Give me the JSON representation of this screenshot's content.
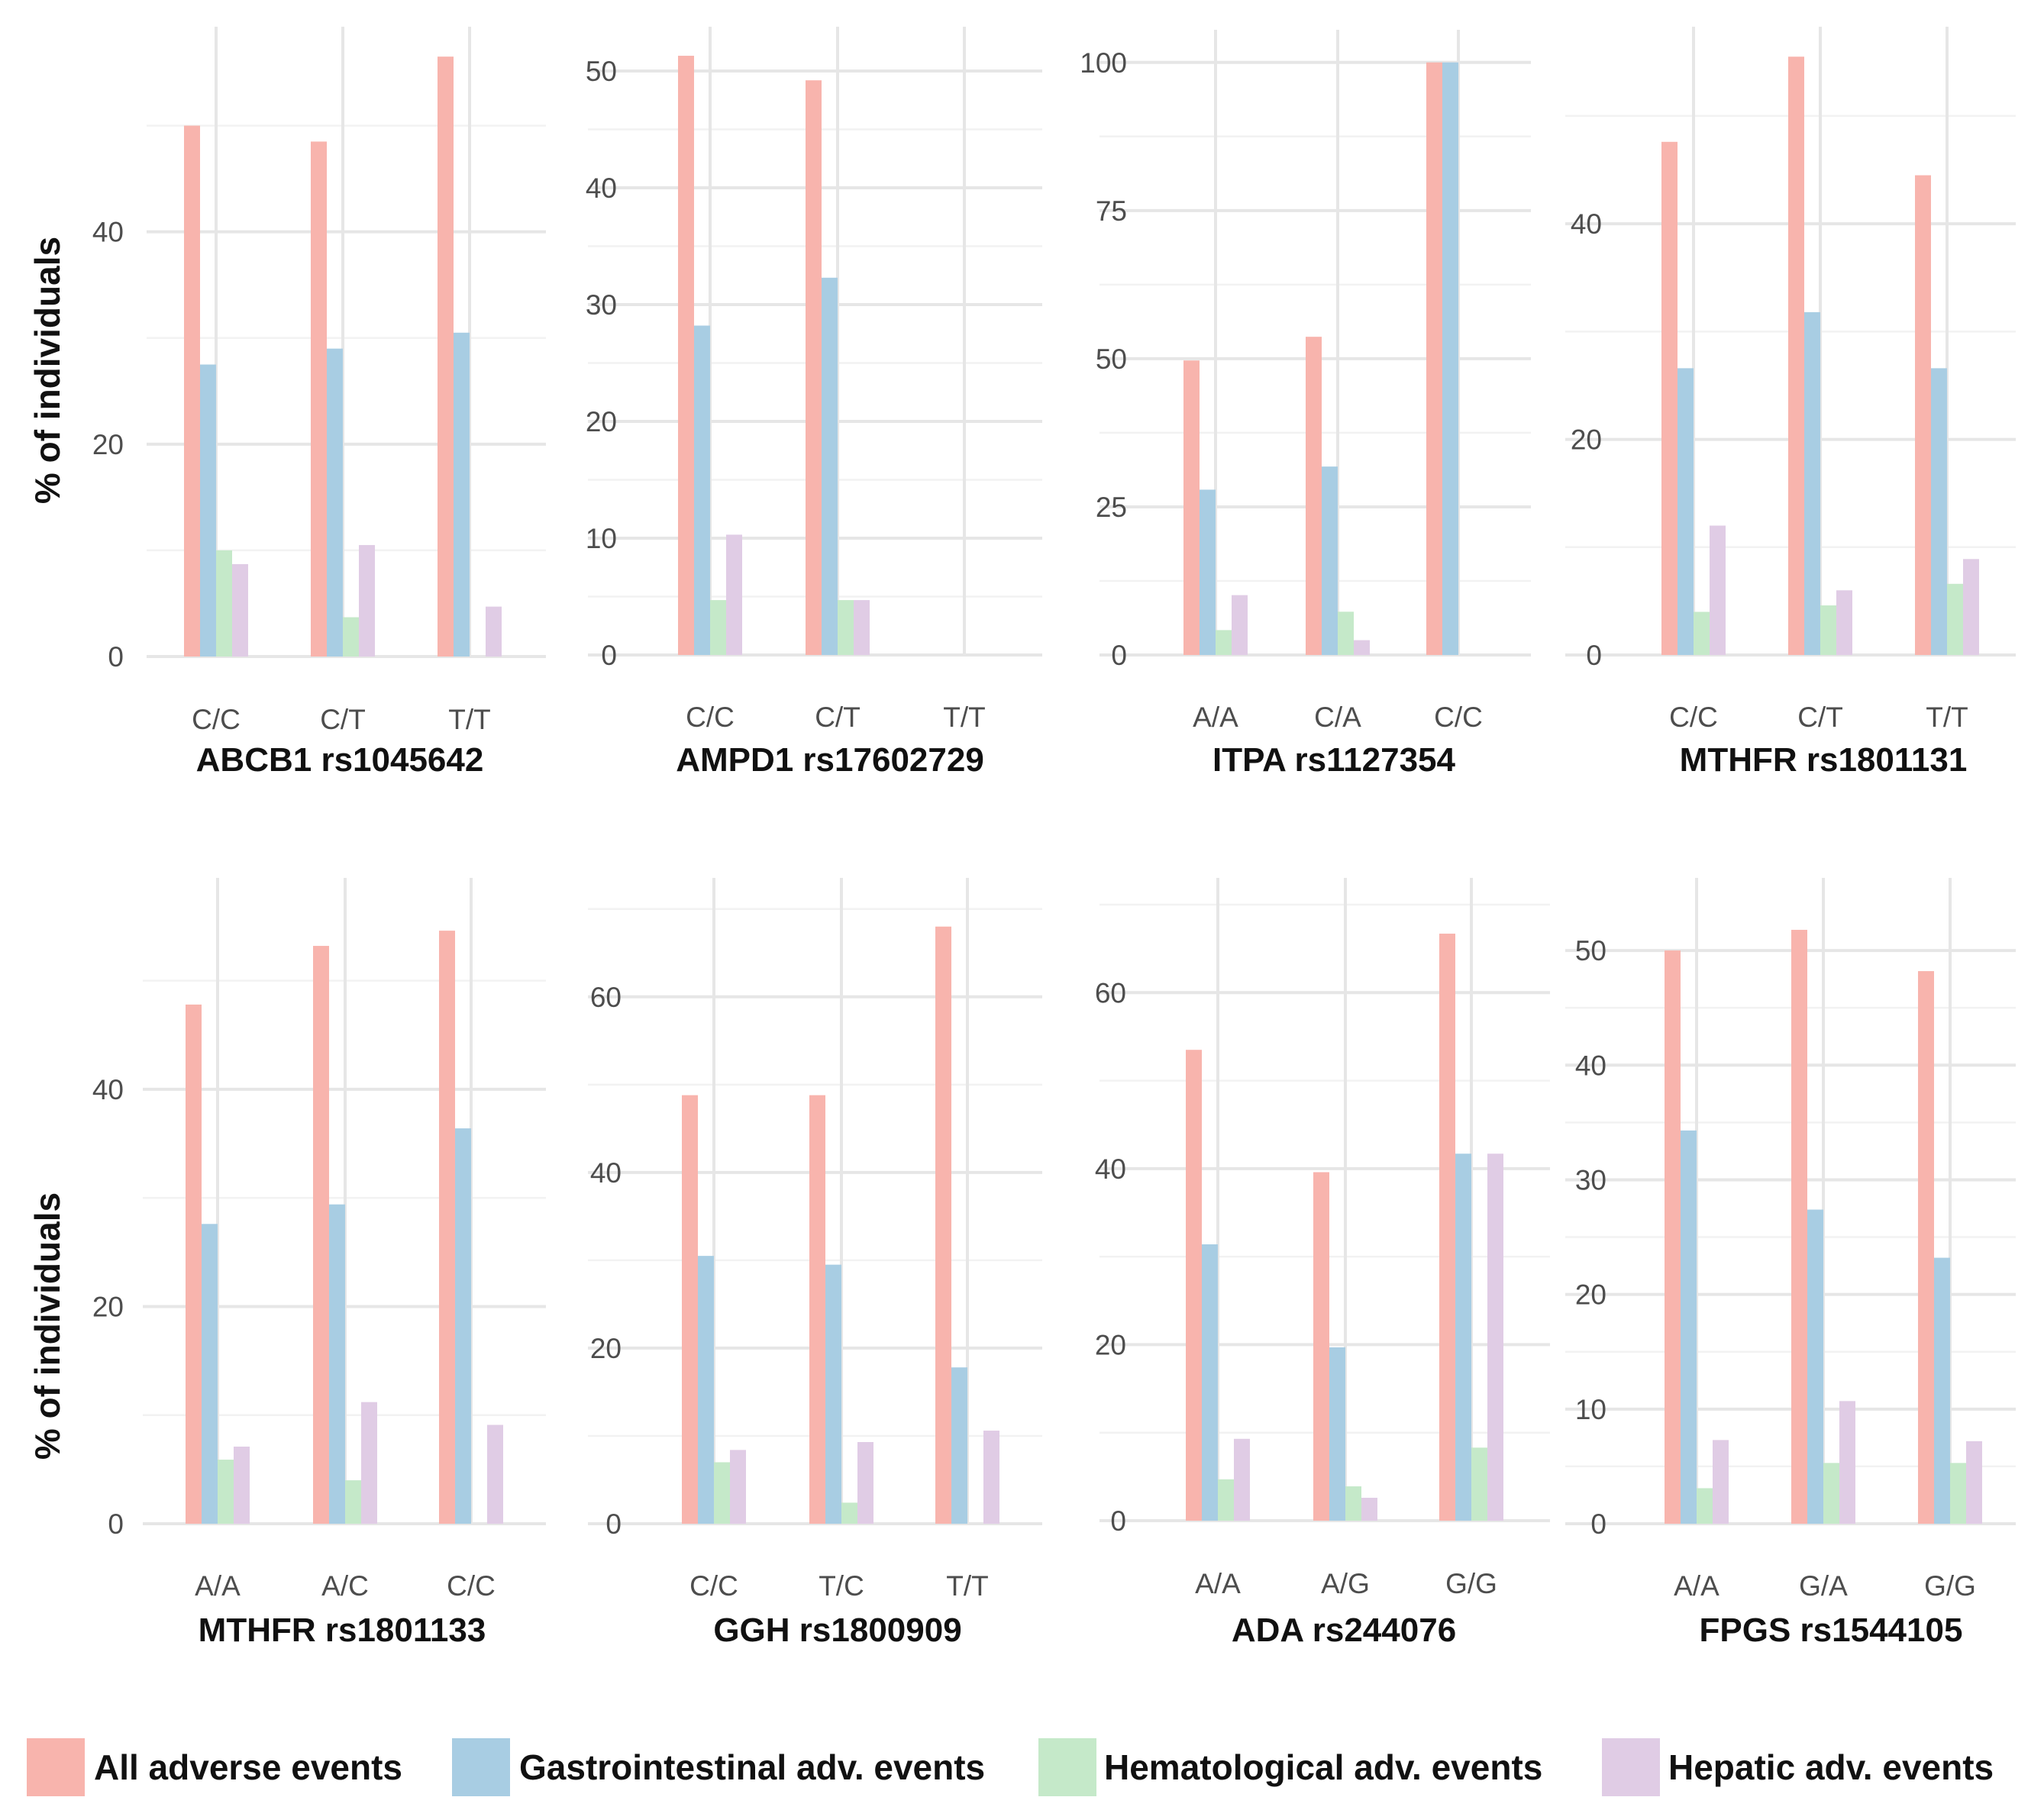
{
  "y_axis_label": "% of individuals",
  "colors": {
    "all": "#f8b4ad",
    "gastro": "#a8cde3",
    "hema": "#c5e9c9",
    "hepatic": "#e0cce5",
    "grid_major": "#e6e6e6",
    "grid_minor": "#f2f2f2"
  },
  "chart_data": [
    {
      "type": "bar",
      "title": "ABCB1 rs1045642",
      "ylabel": "% of individuals",
      "categories": [
        "C/C",
        "C/T",
        "T/T"
      ],
      "yticks": [
        0,
        20,
        40
      ],
      "ylim": [
        0,
        56.8
      ],
      "series": [
        {
          "name": "All adverse events",
          "values": [
            50,
            48.5,
            56.5
          ]
        },
        {
          "name": "Gastrointestinal adv. events",
          "values": [
            27.5,
            29,
            30.5
          ]
        },
        {
          "name": "Hematological adv. events",
          "values": [
            10,
            3.7,
            0
          ]
        },
        {
          "name": "Hepatic adv. events",
          "values": [
            8.7,
            10.5,
            4.7
          ]
        }
      ]
    },
    {
      "type": "bar",
      "title": "AMPD1 rs17602729",
      "ylabel": "",
      "categories": [
        "C/C",
        "C/T",
        "T/T"
      ],
      "yticks": [
        0,
        10,
        20,
        30,
        40,
        50
      ],
      "ylim": [
        0,
        51.5
      ],
      "series": [
        {
          "name": "All adverse events",
          "values": [
            51.3,
            49.2,
            0
          ]
        },
        {
          "name": "Gastrointestinal adv. events",
          "values": [
            28.2,
            32.3,
            0
          ]
        },
        {
          "name": "Hematological adv. events",
          "values": [
            4.7,
            4.7,
            0
          ]
        },
        {
          "name": "Hepatic adv. events",
          "values": [
            10.3,
            4.7,
            0
          ]
        }
      ]
    },
    {
      "type": "bar",
      "title": "ITPA rs1127354",
      "ylabel": "",
      "categories": [
        "A/A",
        "C/A",
        "C/C"
      ],
      "yticks": [
        0,
        25,
        50,
        75,
        100
      ],
      "ylim": [
        0,
        101
      ],
      "series": [
        {
          "name": "All adverse events",
          "values": [
            49.7,
            53.7,
            100
          ]
        },
        {
          "name": "Gastrointestinal adv. events",
          "values": [
            27.9,
            31.8,
            100
          ]
        },
        {
          "name": "Hematological adv. events",
          "values": [
            4.2,
            7.3,
            0
          ]
        },
        {
          "name": "Hepatic adv. events",
          "values": [
            10.1,
            2.5,
            0
          ]
        }
      ]
    },
    {
      "type": "bar",
      "title": "MTHFR rs1801131",
      "ylabel": "",
      "categories": [
        "C/C",
        "C/T",
        "T/T"
      ],
      "yticks": [
        0,
        20,
        40
      ],
      "ylim": [
        0,
        55.8
      ],
      "series": [
        {
          "name": "All adverse events",
          "values": [
            47.6,
            55.5,
            44.5
          ]
        },
        {
          "name": "Gastrointestinal adv. events",
          "values": [
            26.6,
            31.8,
            26.6
          ]
        },
        {
          "name": "Hematological adv. events",
          "values": [
            4,
            4.6,
            6.6
          ]
        },
        {
          "name": "Hepatic adv. events",
          "values": [
            12,
            6,
            8.9
          ]
        }
      ]
    },
    {
      "type": "bar",
      "title": "MTHFR rs1801133",
      "ylabel": "% of individuals",
      "categories": [
        "A/A",
        "A/C",
        "C/C"
      ],
      "yticks": [
        0,
        20,
        40
      ],
      "ylim": [
        0,
        57
      ],
      "series": [
        {
          "name": "All adverse events",
          "values": [
            47.8,
            53.2,
            54.6
          ]
        },
        {
          "name": "Gastrointestinal adv. events",
          "values": [
            27.6,
            29.4,
            36.4
          ]
        },
        {
          "name": "Hematological adv. events",
          "values": [
            5.9,
            4,
            0
          ]
        },
        {
          "name": "Hepatic adv. events",
          "values": [
            7.1,
            11.2,
            9.1
          ]
        }
      ]
    },
    {
      "type": "bar",
      "title": "GGH rs1800909",
      "ylabel": "",
      "categories": [
        "C/C",
        "T/C",
        "T/T"
      ],
      "yticks": [
        0,
        20,
        40,
        60
      ],
      "ylim": [
        0,
        70.5
      ],
      "series": [
        {
          "name": "All adverse events",
          "values": [
            48.8,
            48.8,
            68
          ]
        },
        {
          "name": "Gastrointestinal adv. events",
          "values": [
            30.5,
            29.5,
            17.8
          ]
        },
        {
          "name": "Hematological adv. events",
          "values": [
            7,
            2.4,
            0
          ]
        },
        {
          "name": "Hepatic adv. events",
          "values": [
            8.4,
            9.3,
            10.6
          ]
        }
      ]
    },
    {
      "type": "bar",
      "title": "ADA rs244076",
      "ylabel": "",
      "categories": [
        "A/A",
        "A/G",
        "G/G"
      ],
      "yticks": [
        0,
        20,
        40,
        60
      ],
      "ylim": [
        0,
        70
      ],
      "series": [
        {
          "name": "All adverse events",
          "values": [
            53.5,
            39.6,
            66.7
          ]
        },
        {
          "name": "Gastrointestinal adv. events",
          "values": [
            31.4,
            19.7,
            41.7
          ]
        },
        {
          "name": "Hematological adv. events",
          "values": [
            4.7,
            3.9,
            8.3
          ]
        },
        {
          "name": "Hepatic adv. events",
          "values": [
            9.3,
            2.6,
            41.7
          ]
        }
      ]
    },
    {
      "type": "bar",
      "title": "FPGS rs1544105",
      "ylabel": "",
      "categories": [
        "A/A",
        "G/A",
        "G/G"
      ],
      "yticks": [
        0,
        10,
        20,
        30,
        40,
        50
      ],
      "ylim": [
        0,
        54
      ],
      "series": [
        {
          "name": "All adverse events",
          "values": [
            50,
            51.8,
            48.2
          ]
        },
        {
          "name": "Gastrointestinal adv. events",
          "values": [
            34.3,
            27.4,
            23.2
          ]
        },
        {
          "name": "Hematological adv. events",
          "values": [
            3.1,
            5.3,
            5.3
          ]
        },
        {
          "name": "Hepatic adv. events",
          "values": [
            7.3,
            10.7,
            7.2
          ]
        }
      ]
    }
  ],
  "legend": {
    "position": "bottom",
    "items": [
      {
        "label": "All adverse events",
        "color": "#f8b4ad"
      },
      {
        "label": "Gastrointestinal adv. events",
        "color": "#a8cde3"
      },
      {
        "label": "Hematological adv. events",
        "color": "#c5e9c9"
      },
      {
        "label": "Hepatic adv. events",
        "color": "#e0cce5"
      }
    ]
  }
}
